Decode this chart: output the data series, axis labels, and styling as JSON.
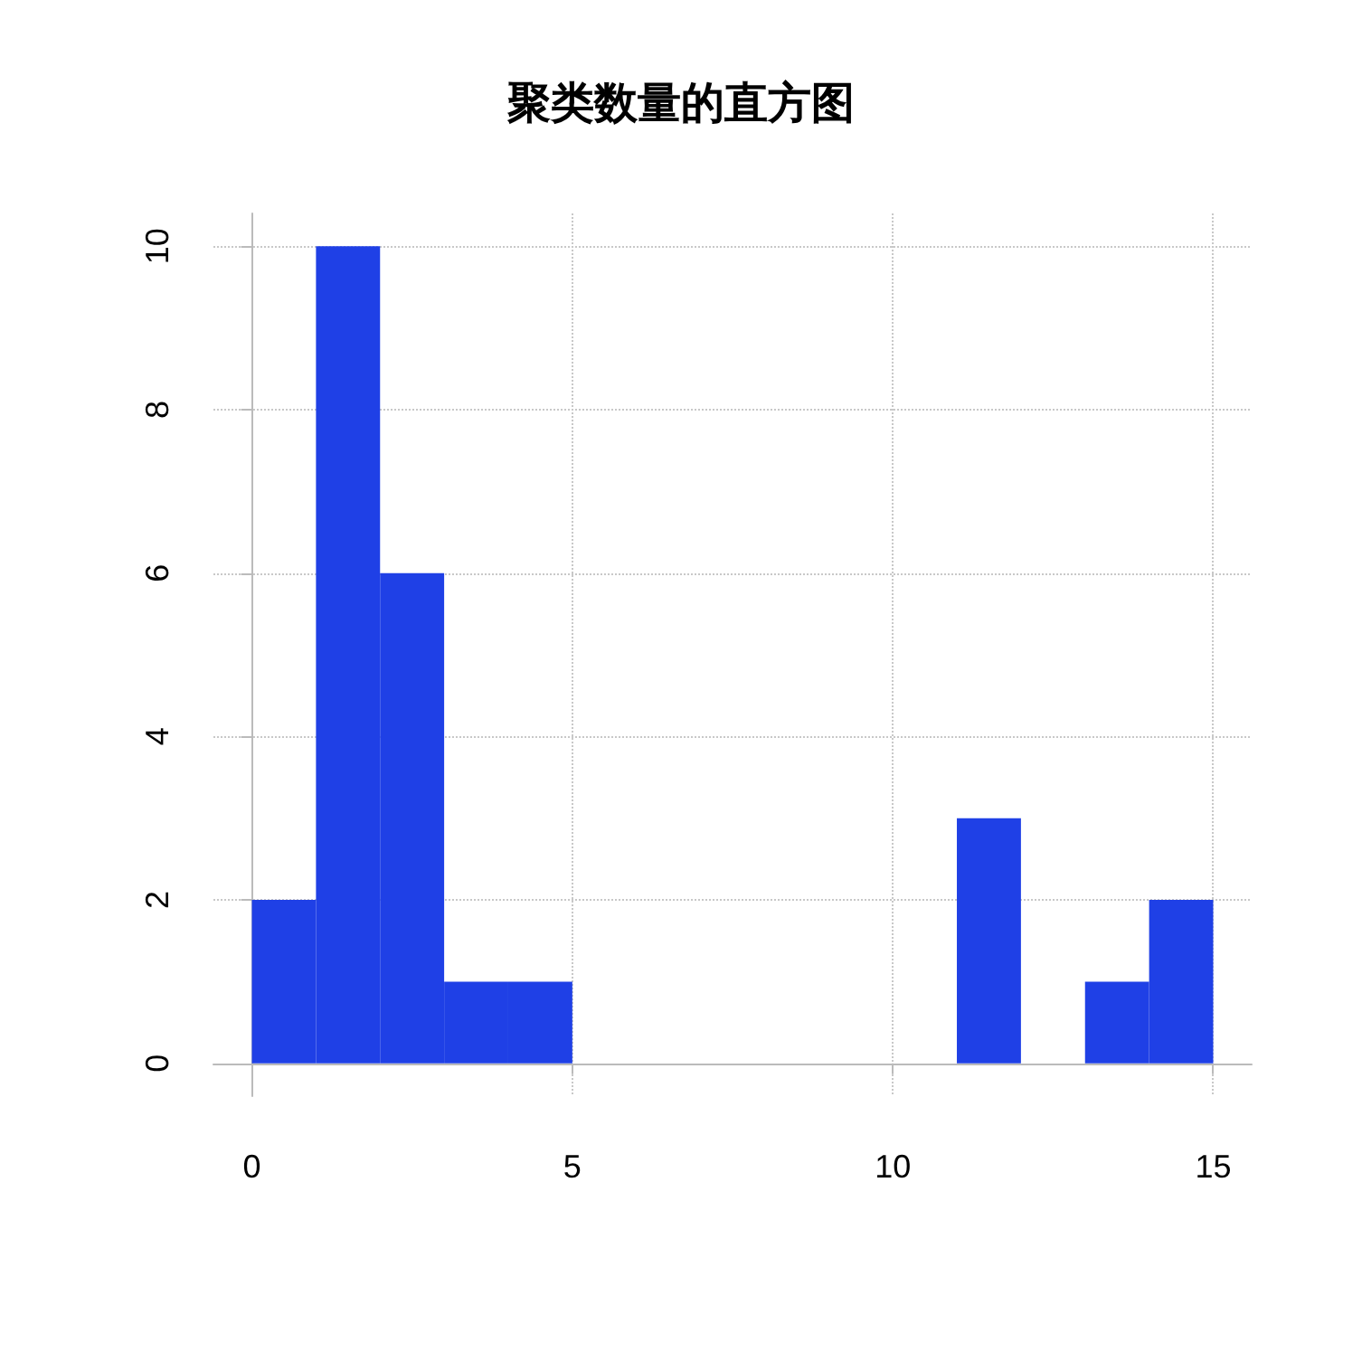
{
  "chart_data": {
    "type": "histogram",
    "title": "聚类数量的直方图",
    "bins": [
      0,
      1,
      2,
      3,
      4,
      5,
      6,
      7,
      8,
      9,
      10,
      11,
      12,
      13,
      14,
      15
    ],
    "values": [
      2,
      10,
      6,
      1,
      1,
      0,
      0,
      0,
      0,
      0,
      0,
      3,
      0,
      1,
      2
    ],
    "color": "#1f40e6",
    "xlim": [
      -0.6,
      15.6
    ],
    "xticks": [
      0,
      5,
      10,
      15
    ],
    "ylim": [
      -0.4,
      10.4
    ],
    "yticks": [
      0,
      2,
      4,
      6,
      8,
      10
    ],
    "grid": true
  }
}
